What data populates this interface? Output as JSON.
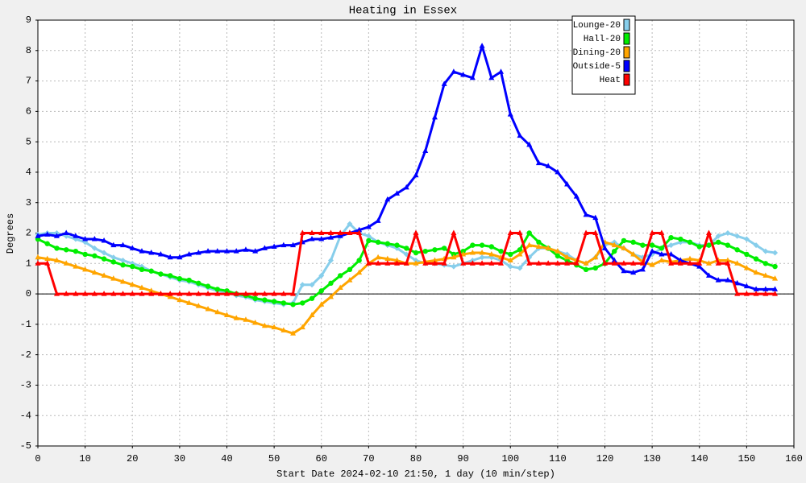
{
  "chart_data": {
    "type": "line",
    "title": "Heating in Essex",
    "xlabel": "Start Date 2024-02-10 21:50, 1 day (10 min/step)",
    "ylabel": "Degrees",
    "xlim": [
      0,
      160
    ],
    "ylim": [
      -5,
      9
    ],
    "xticks": [
      0,
      10,
      20,
      30,
      40,
      50,
      60,
      70,
      80,
      90,
      100,
      110,
      120,
      130,
      140,
      150,
      160
    ],
    "yticks": [
      -5,
      -4,
      -3,
      -2,
      -1,
      0,
      1,
      2,
      3,
      4,
      5,
      6,
      7,
      8,
      9
    ],
    "grid": true,
    "legend": "top-right",
    "x": [
      0,
      2,
      4,
      6,
      8,
      10,
      12,
      14,
      16,
      18,
      20,
      22,
      24,
      26,
      28,
      30,
      32,
      34,
      36,
      38,
      40,
      42,
      44,
      46,
      48,
      50,
      52,
      54,
      56,
      58,
      60,
      62,
      64,
      66,
      68,
      70,
      72,
      74,
      76,
      78,
      80,
      82,
      84,
      86,
      88,
      90,
      92,
      94,
      96,
      98,
      100,
      102,
      104,
      106,
      108,
      110,
      112,
      114,
      116,
      118,
      120,
      122,
      124,
      126,
      128,
      130,
      132,
      134,
      136,
      138,
      140,
      142,
      144,
      146,
      148,
      150,
      152,
      154,
      156
    ],
    "series": [
      {
        "name": "Lounge-20",
        "color": "#87ceeb",
        "marker": "diamond",
        "values": [
          1.95,
          2.0,
          2.0,
          1.9,
          1.8,
          1.7,
          1.5,
          1.35,
          1.2,
          1.1,
          1.0,
          0.9,
          0.75,
          0.65,
          0.55,
          0.45,
          0.4,
          0.3,
          0.2,
          0.1,
          0.05,
          -0.05,
          -0.1,
          -0.2,
          -0.25,
          -0.3,
          -0.35,
          -0.3,
          0.3,
          0.3,
          0.6,
          1.1,
          1.9,
          2.3,
          2.0,
          1.9,
          1.7,
          1.6,
          1.5,
          1.3,
          1.1,
          1.0,
          1.0,
          0.95,
          0.9,
          1.0,
          1.1,
          1.2,
          1.2,
          1.1,
          0.9,
          0.85,
          1.2,
          1.5,
          1.5,
          1.4,
          1.3,
          1.1,
          1.0,
          1.2,
          1.6,
          1.7,
          1.5,
          1.3,
          1.2,
          1.3,
          1.5,
          1.6,
          1.7,
          1.7,
          1.6,
          1.6,
          1.9,
          2.0,
          1.9,
          1.8,
          1.6,
          1.4,
          1.35
        ]
      },
      {
        "name": "Hall-20",
        "color": "#00ee00",
        "marker": "circle",
        "values": [
          1.8,
          1.65,
          1.5,
          1.45,
          1.4,
          1.3,
          1.25,
          1.15,
          1.05,
          0.95,
          0.9,
          0.8,
          0.75,
          0.65,
          0.6,
          0.5,
          0.45,
          0.35,
          0.25,
          0.15,
          0.1,
          0.0,
          -0.05,
          -0.15,
          -0.2,
          -0.25,
          -0.3,
          -0.35,
          -0.3,
          -0.15,
          0.1,
          0.35,
          0.6,
          0.8,
          1.1,
          1.75,
          1.7,
          1.65,
          1.6,
          1.5,
          1.35,
          1.4,
          1.45,
          1.5,
          1.3,
          1.4,
          1.6,
          1.6,
          1.55,
          1.4,
          1.3,
          1.45,
          2.0,
          1.7,
          1.5,
          1.25,
          1.1,
          0.95,
          0.8,
          0.85,
          1.0,
          1.4,
          1.75,
          1.7,
          1.6,
          1.6,
          1.5,
          1.85,
          1.8,
          1.7,
          1.55,
          1.6,
          1.7,
          1.6,
          1.45,
          1.3,
          1.15,
          1.0,
          0.9
        ]
      },
      {
        "name": "Dining-20",
        "color": "#ffa500",
        "marker": "triangle",
        "values": [
          1.2,
          1.15,
          1.1,
          1.0,
          0.9,
          0.8,
          0.7,
          0.6,
          0.5,
          0.4,
          0.3,
          0.2,
          0.1,
          0.0,
          -0.1,
          -0.2,
          -0.3,
          -0.4,
          -0.5,
          -0.6,
          -0.7,
          -0.8,
          -0.85,
          -0.95,
          -1.05,
          -1.1,
          -1.2,
          -1.3,
          -1.1,
          -0.7,
          -0.35,
          -0.1,
          0.2,
          0.45,
          0.7,
          1.0,
          1.2,
          1.15,
          1.1,
          1.0,
          1.0,
          1.05,
          1.1,
          1.15,
          1.2,
          1.3,
          1.35,
          1.35,
          1.3,
          1.2,
          1.1,
          1.3,
          1.6,
          1.55,
          1.5,
          1.4,
          1.2,
          1.1,
          1.0,
          1.2,
          1.7,
          1.6,
          1.5,
          1.3,
          1.05,
          0.95,
          1.1,
          1.05,
          1.1,
          1.15,
          1.1,
          1.0,
          1.1,
          1.1,
          1.0,
          0.85,
          0.7,
          0.6,
          0.5
        ]
      },
      {
        "name": "Outside-5",
        "color": "#0000ff",
        "marker": "triangle",
        "values": [
          1.9,
          1.95,
          1.9,
          2.0,
          1.9,
          1.8,
          1.8,
          1.75,
          1.6,
          1.6,
          1.5,
          1.4,
          1.35,
          1.3,
          1.2,
          1.2,
          1.3,
          1.35,
          1.4,
          1.4,
          1.4,
          1.4,
          1.45,
          1.4,
          1.5,
          1.55,
          1.6,
          1.6,
          1.7,
          1.8,
          1.8,
          1.85,
          1.9,
          2.0,
          2.1,
          2.2,
          2.4,
          3.1,
          3.3,
          3.5,
          3.9,
          4.7,
          5.8,
          6.9,
          7.3,
          7.2,
          7.1,
          8.15,
          7.1,
          7.3,
          5.9,
          5.2,
          4.9,
          4.3,
          4.2,
          4.0,
          3.6,
          3.2,
          2.6,
          2.5,
          1.5,
          1.1,
          0.75,
          0.7,
          0.8,
          1.4,
          1.3,
          1.3,
          1.1,
          1.0,
          0.9,
          0.6,
          0.45,
          0.45,
          0.35,
          0.25,
          0.15,
          0.15,
          0.15
        ]
      },
      {
        "name": "Heat",
        "color": "#ff0000",
        "marker": "triangle",
        "values": [
          1,
          1,
          0,
          0,
          0,
          0,
          0,
          0,
          0,
          0,
          0,
          0,
          0,
          0,
          0,
          0,
          0,
          0,
          0,
          0,
          0,
          0,
          0,
          0,
          0,
          0,
          0,
          0,
          2,
          2,
          2,
          2,
          2,
          2,
          2,
          1,
          1,
          1,
          1,
          1,
          2,
          1,
          1,
          1,
          2,
          1,
          1,
          1,
          1,
          1,
          2,
          2,
          1,
          1,
          1,
          1,
          1,
          1,
          2,
          2,
          1,
          1,
          1,
          1,
          1,
          2,
          2,
          1,
          1,
          1,
          1,
          2,
          1,
          1,
          0,
          0,
          0,
          0,
          0
        ]
      }
    ]
  }
}
